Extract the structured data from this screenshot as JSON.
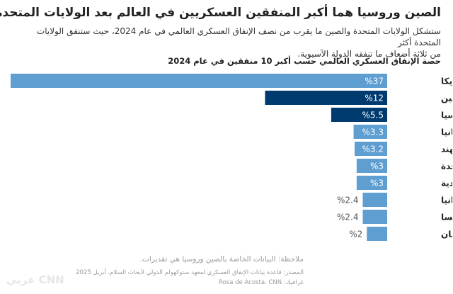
{
  "header": {
    "title": "الصين وروسيا هما أكبر المنفقين العسكريين في العالم بعد الولايات المتحدة",
    "subtitle_line1": "ستشكل الولايات المتحدة والصين ما يقرب من نصف الإنفاق العسكري العالمي في عام 2024، حيث ستنفق الولايات المتحدة أكثر",
    "subtitle_line2": "من ثلاثة أضعاف ما تنفقه الدولة الآسيوية."
  },
  "chart_data": {
    "type": "bar",
    "orientation": "horizontal",
    "title": "حصة الإنفاق العسكري العالمي حسب أكبر 10 منفقين في عام 2024",
    "categories": [
      "أمريكا",
      "الصين",
      "روسيا",
      "ألمانيا",
      "الهند",
      "المملكة المتحدة",
      "السعودية",
      "أوكرانيا",
      "فرنسا",
      "اليابان"
    ],
    "values": [
      37,
      12,
      5.5,
      3.3,
      3.2,
      3,
      3,
      2.4,
      2.4,
      2
    ],
    "value_labels": [
      "%37",
      "%12",
      "%5.5",
      "%3.3",
      "%3.2",
      "%3",
      "%3",
      "%2.4",
      "%2.4",
      "%2"
    ],
    "colors": [
      "#5f9ed1",
      "#003b6f",
      "#003b6f",
      "#5f9ed1",
      "#5f9ed1",
      "#5f9ed1",
      "#5f9ed1",
      "#5f9ed1",
      "#5f9ed1",
      "#5f9ed1"
    ],
    "xlim": [
      0,
      37
    ],
    "xlabel": "",
    "ylabel": ""
  },
  "footer": {
    "note": "ملاحظة: البيانات الخاصة بالصين وروسيا هي تقديرات.",
    "source": "المصدر: قاعدة بيانات الإنفاق العسكري لمعهد ستوكهولم الدولي لأبحاث السلام، أبريل 2025",
    "credit": "غرافيك: Rosa de Acosta، CNN",
    "logo": "CNN عربي"
  }
}
